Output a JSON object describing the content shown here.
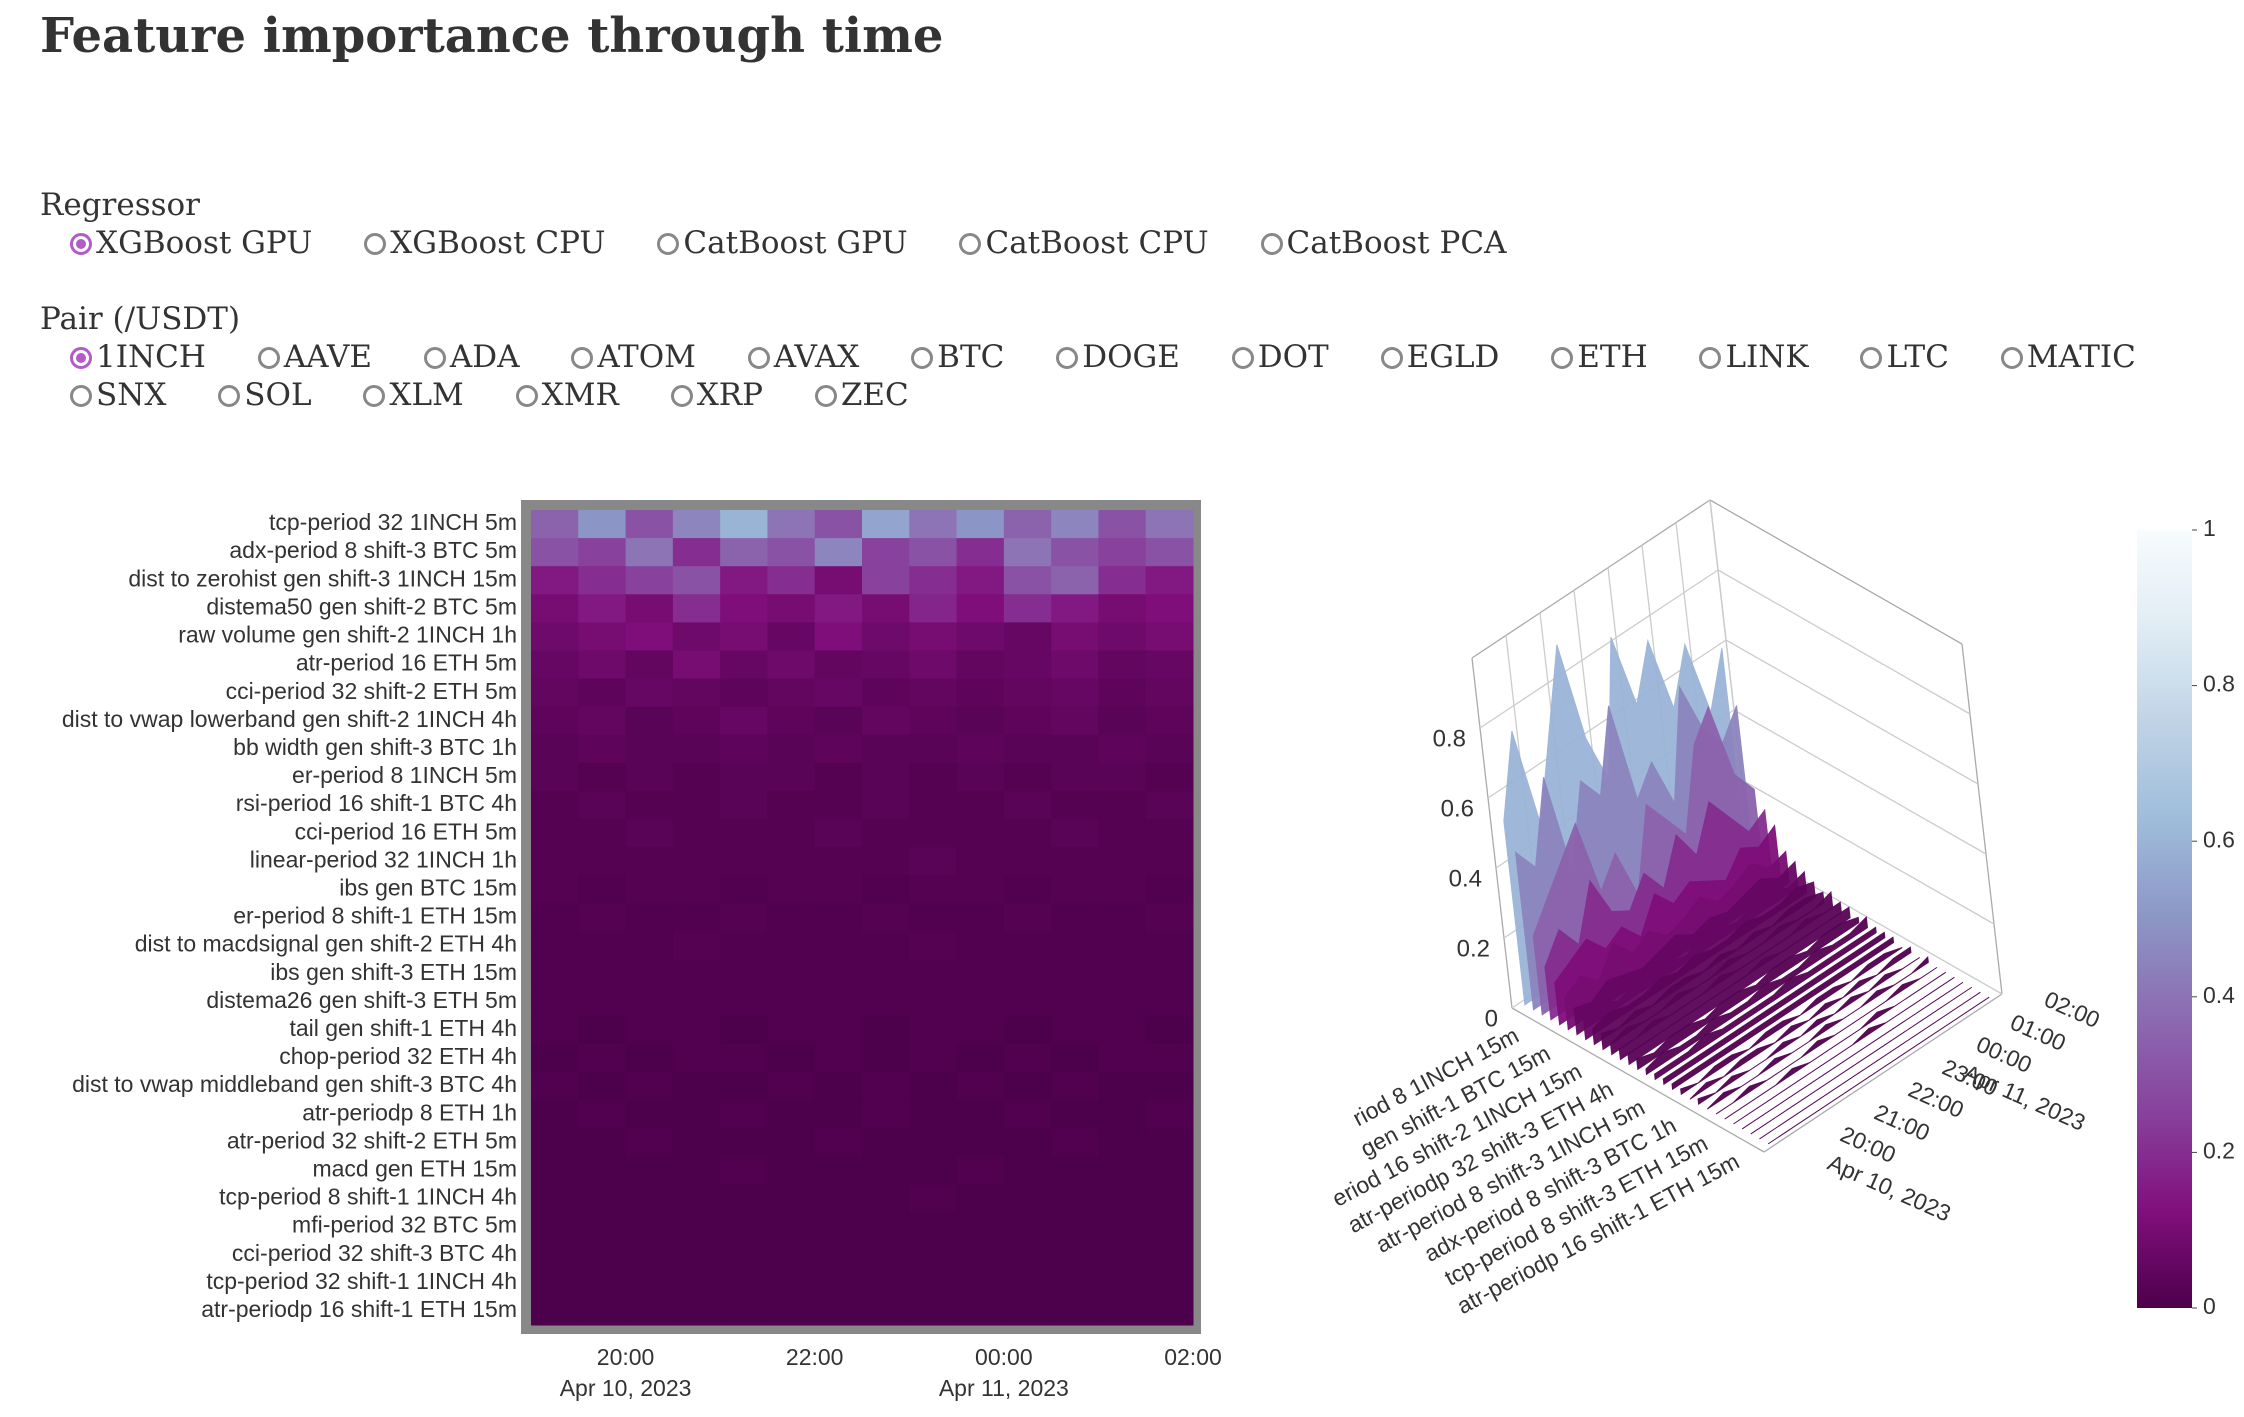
{
  "header": {
    "title": "Feature importance through time"
  },
  "controls": [
    {
      "label": "Regressor",
      "selected": 0,
      "options": [
        "XGBoost GPU",
        "XGBoost CPU",
        "CatBoost GPU",
        "CatBoost CPU",
        "CatBoost PCA"
      ]
    },
    {
      "label": "Pair (/USDT)",
      "selected": 0,
      "options": [
        "1INCH",
        "AAVE",
        "ADA",
        "ATOM",
        "AVAX",
        "BTC",
        "DOGE",
        "DOT",
        "EGLD",
        "ETH",
        "LINK",
        "LTC",
        "MATIC",
        "SNX",
        "SOL",
        "XLM",
        "XMR",
        "XRP",
        "ZEC"
      ]
    }
  ],
  "chart_data": [
    {
      "type": "heatmap",
      "categories": [
        "tcp-period 32 1INCH 5m",
        "adx-period 8 shift-3 BTC 5m",
        "dist to zerohist gen shift-3 1INCH 15m",
        "distema50 gen shift-2 BTC 5m",
        "raw volume gen shift-2 1INCH 1h",
        "atr-period 16 ETH 5m",
        "cci-period 32 shift-2 ETH 5m",
        "dist to vwap lowerband gen shift-2 1INCH 4h",
        "bb width gen shift-3 BTC 1h",
        "er-period 8 1INCH 5m",
        "rsi-period 16 shift-1 BTC 4h",
        "cci-period 16 ETH 5m",
        "linear-period 32 1INCH 1h",
        "ibs gen BTC 15m",
        "er-period 8 shift-1 ETH 15m",
        "dist to macdsignal gen shift-2 ETH 4h",
        "ibs gen shift-3 ETH 15m",
        "distema26 gen shift-3 ETH 5m",
        "tail gen shift-1 ETH 4h",
        "chop-period 32 ETH 4h",
        "dist to vwap middleband gen shift-3 BTC 4h",
        "atr-periodp 8 ETH 1h",
        "atr-period 32 shift-2 ETH 5m",
        "macd gen ETH 15m",
        "tcp-period 8 shift-1 1INCH 4h",
        "mfi-period 32 BTC 5m",
        "cci-period 32 shift-3 BTC 4h",
        "tcp-period 32 shift-1 1INCH 4h",
        "atr-periodp 16 shift-1 ETH 15m"
      ],
      "x": [
        "2023-04-10T19:00",
        "2023-04-10T19:30",
        "2023-04-10T20:00",
        "2023-04-10T20:30",
        "2023-04-10T21:00",
        "2023-04-10T21:30",
        "2023-04-10T22:00",
        "2023-04-10T22:30",
        "2023-04-10T23:00",
        "2023-04-10T23:30",
        "2023-04-11T00:00",
        "2023-04-11T00:30",
        "2023-04-11T01:00",
        "2023-04-11T01:30"
      ],
      "z": [
        [
          0.35,
          0.5,
          0.3,
          0.45,
          0.6,
          0.4,
          0.3,
          0.55,
          0.4,
          0.5,
          0.35,
          0.45,
          0.3,
          0.4
        ],
        [
          0.3,
          0.25,
          0.4,
          0.2,
          0.35,
          0.3,
          0.45,
          0.25,
          0.3,
          0.2,
          0.4,
          0.3,
          0.25,
          0.3
        ],
        [
          0.15,
          0.2,
          0.25,
          0.3,
          0.15,
          0.2,
          0.1,
          0.25,
          0.2,
          0.15,
          0.3,
          0.35,
          0.2,
          0.15
        ],
        [
          0.1,
          0.15,
          0.1,
          0.2,
          0.12,
          0.1,
          0.15,
          0.1,
          0.18,
          0.12,
          0.2,
          0.15,
          0.1,
          0.12
        ],
        [
          0.08,
          0.1,
          0.12,
          0.08,
          0.1,
          0.06,
          0.12,
          0.08,
          0.1,
          0.08,
          0.06,
          0.1,
          0.08,
          0.1
        ],
        [
          0.06,
          0.08,
          0.05,
          0.1,
          0.06,
          0.08,
          0.05,
          0.06,
          0.08,
          0.05,
          0.06,
          0.08,
          0.05,
          0.06
        ],
        [
          0.05,
          0.04,
          0.06,
          0.05,
          0.04,
          0.05,
          0.06,
          0.04,
          0.05,
          0.04,
          0.05,
          0.06,
          0.04,
          0.05
        ],
        [
          0.04,
          0.05,
          0.03,
          0.04,
          0.06,
          0.04,
          0.03,
          0.05,
          0.04,
          0.03,
          0.04,
          0.05,
          0.03,
          0.04
        ],
        [
          0.03,
          0.04,
          0.03,
          0.03,
          0.04,
          0.03,
          0.04,
          0.03,
          0.03,
          0.04,
          0.03,
          0.03,
          0.04,
          0.03
        ],
        [
          0.03,
          0.02,
          0.03,
          0.02,
          0.03,
          0.03,
          0.02,
          0.03,
          0.02,
          0.03,
          0.02,
          0.03,
          0.03,
          0.02
        ],
        [
          0.02,
          0.03,
          0.02,
          0.02,
          0.03,
          0.02,
          0.02,
          0.03,
          0.02,
          0.02,
          0.03,
          0.02,
          0.02,
          0.03
        ],
        [
          0.02,
          0.02,
          0.03,
          0.02,
          0.02,
          0.02,
          0.03,
          0.02,
          0.02,
          0.02,
          0.02,
          0.03,
          0.02,
          0.02
        ],
        [
          0.02,
          0.02,
          0.02,
          0.02,
          0.02,
          0.02,
          0.02,
          0.02,
          0.03,
          0.02,
          0.02,
          0.02,
          0.02,
          0.02
        ],
        [
          0.02,
          0.01,
          0.02,
          0.02,
          0.01,
          0.02,
          0.02,
          0.01,
          0.02,
          0.02,
          0.01,
          0.02,
          0.02,
          0.01
        ],
        [
          0.01,
          0.02,
          0.01,
          0.01,
          0.02,
          0.01,
          0.01,
          0.02,
          0.01,
          0.01,
          0.02,
          0.01,
          0.01,
          0.02
        ],
        [
          0.01,
          0.01,
          0.01,
          0.02,
          0.01,
          0.01,
          0.01,
          0.01,
          0.02,
          0.01,
          0.01,
          0.01,
          0.01,
          0.01
        ],
        [
          0.01,
          0.01,
          0.01,
          0.01,
          0.01,
          0.01,
          0.01,
          0.01,
          0.01,
          0.01,
          0.01,
          0.01,
          0.01,
          0.01
        ],
        [
          0.01,
          0.01,
          0.01,
          0.01,
          0.01,
          0.01,
          0.01,
          0.01,
          0.01,
          0.01,
          0.01,
          0.01,
          0.01,
          0.01
        ],
        [
          0.01,
          0,
          0.01,
          0.01,
          0,
          0.01,
          0.01,
          0,
          0.01,
          0.01,
          0,
          0.01,
          0.01,
          0
        ],
        [
          0,
          0.01,
          0,
          0.01,
          0.01,
          0,
          0.01,
          0,
          0.01,
          0,
          0.01,
          0,
          0.01,
          0.01
        ],
        [
          0.01,
          0,
          0.01,
          0,
          0,
          0.01,
          0,
          0.01,
          0,
          0.01,
          0,
          0.01,
          0,
          0
        ],
        [
          0,
          0.01,
          0,
          0,
          0.01,
          0,
          0,
          0.01,
          0,
          0,
          0.01,
          0,
          0,
          0.01
        ],
        [
          0,
          0,
          0.01,
          0,
          0,
          0,
          0.01,
          0,
          0,
          0,
          0,
          0.01,
          0,
          0
        ],
        [
          0,
          0,
          0,
          0,
          0.01,
          0,
          0,
          0,
          0,
          0.01,
          0,
          0,
          0,
          0
        ],
        [
          0,
          0,
          0,
          0,
          0,
          0,
          0,
          0,
          0.01,
          0,
          0,
          0,
          0,
          0
        ],
        [
          0,
          0,
          0,
          0,
          0,
          0,
          0,
          0,
          0,
          0,
          0,
          0,
          0,
          0
        ],
        [
          0,
          0,
          0,
          0,
          0,
          0,
          0,
          0,
          0,
          0,
          0,
          0,
          0,
          0
        ],
        [
          0,
          0,
          0,
          0,
          0,
          0,
          0,
          0,
          0,
          0,
          0,
          0,
          0,
          0
        ],
        [
          0,
          0,
          0,
          0,
          0,
          0,
          0,
          0,
          0,
          0,
          0,
          0,
          0,
          0
        ]
      ],
      "xlim": [
        "2023-04-10T19:00",
        "2023-04-11T02:00"
      ],
      "xticks": [
        {
          "value": "2023-04-10T20:00",
          "label": "20:00\nApr 10, 2023"
        },
        {
          "value": "2023-04-10T22:00",
          "label": "22:00"
        },
        {
          "value": "2023-04-11T00:00",
          "label": "00:00\nApr 11, 2023"
        },
        {
          "value": "2023-04-11T02:00",
          "label": "02:00"
        }
      ],
      "colorscale": [
        [
          0,
          "#4d004b"
        ],
        [
          0.125,
          "#810f7c"
        ],
        [
          0.25,
          "#88419d"
        ],
        [
          0.375,
          "#8c6bb1"
        ],
        [
          0.5,
          "#8c96c6"
        ],
        [
          0.625,
          "#9ebcda"
        ],
        [
          0.75,
          "#bfd3e6"
        ],
        [
          0.875,
          "#e0ecf4"
        ],
        [
          1,
          "#f7fcfd"
        ]
      ]
    },
    {
      "type": "surface3d",
      "zlim": [
        0,
        1
      ],
      "zticks": [
        0,
        0.2,
        0.4,
        0.6,
        0.8
      ],
      "xticks": [
        {
          "value": "2023-04-10T20:00",
          "label": "20:00\nApr 10, 2023"
        },
        {
          "value": "2023-04-10T21:00",
          "label": "21:00"
        },
        {
          "value": "2023-04-10T22:00",
          "label": "22:00"
        },
        {
          "value": "2023-04-10T23:00",
          "label": "23:00"
        },
        {
          "value": "2023-04-11T00:00",
          "label": "00:00\nApr 11, 2023"
        },
        {
          "value": "2023-04-11T01:00",
          "label": "01:00"
        },
        {
          "value": "2023-04-11T02:00",
          "label": "02:00"
        }
      ],
      "category_labels": [
        "riod 8 1INCH 15m",
        "gen shift-1 BTC 15m",
        "eriod 16 shift-2 1INCH 15m",
        "atr-periodp 32 shift-3 ETH 4h",
        "atr-period 8 shift-3 1INCH 5m",
        "adx-period 8 shift-3 BTC 1h",
        "tcp-period 8 shift-3 ETH 15m",
        "atr-periodp 16 shift-1 ETH 15m"
      ],
      "colorbar": {
        "lim": [
          0,
          1
        ],
        "ticks": [
          0,
          0.2,
          0.4,
          0.6,
          0.8,
          1
        ]
      }
    }
  ]
}
